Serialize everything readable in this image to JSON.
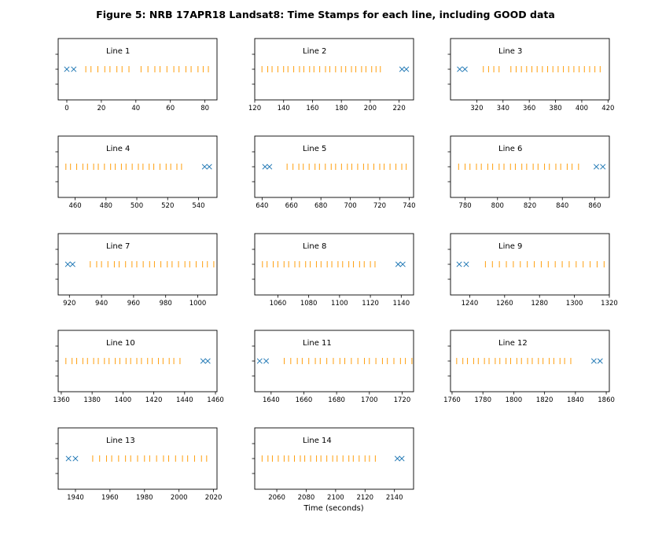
{
  "figure_title": "Figure 5: NRB 17APR18  Landsat8: Time Stamps for each line, including GOOD data",
  "x_axis_label": "Time (seconds)",
  "colors": {
    "all_data": "#1f77b4",
    "good_data": "#ff9f0e"
  },
  "chart_data": [
    {
      "type": "scatter",
      "title": "Line 1",
      "xlim": [
        -5,
        87
      ],
      "xticks": [
        0,
        20,
        40,
        60,
        80
      ],
      "markers_x": [
        0,
        4
      ],
      "good_ticks": [
        11,
        14,
        18,
        22,
        25,
        29,
        32,
        36,
        43,
        47,
        51,
        54,
        58,
        62,
        65,
        69,
        72,
        76,
        79,
        82
      ]
    },
    {
      "type": "scatter",
      "title": "Line 2",
      "xlim": [
        120,
        230
      ],
      "xticks": [
        120,
        140,
        160,
        180,
        200,
        220
      ],
      "markers_x": [
        222,
        225
      ],
      "good_ticks": [
        125,
        129,
        132,
        136,
        140,
        143,
        147,
        151,
        154,
        158,
        161,
        165,
        169,
        172,
        176,
        180,
        183,
        187,
        190,
        194,
        197,
        201,
        204,
        207
      ]
    },
    {
      "type": "scatter",
      "title": "Line 3",
      "xlim": [
        300,
        421
      ],
      "xticks": [
        320,
        340,
        360,
        380,
        400,
        420
      ],
      "markers_x": [
        307,
        311
      ],
      "good_ticks": [
        325,
        329,
        333,
        337,
        346,
        350,
        354,
        358,
        362,
        366,
        370,
        374,
        378,
        382,
        386,
        390,
        394,
        398,
        402,
        406,
        410,
        414
      ]
    },
    {
      "type": "scatter",
      "title": "Line 4",
      "xlim": [
        449,
        552
      ],
      "xticks": [
        460,
        480,
        500,
        520,
        540
      ],
      "markers_x": [
        544,
        547
      ],
      "good_ticks": [
        454,
        457,
        461,
        465,
        468,
        472,
        475,
        479,
        483,
        486,
        490,
        493,
        497,
        501,
        504,
        508,
        511,
        515,
        519,
        522,
        526,
        529
      ]
    },
    {
      "type": "scatter",
      "title": "Line 5",
      "xlim": [
        635,
        743
      ],
      "xticks": [
        640,
        660,
        680,
        700,
        720,
        740
      ],
      "markers_x": [
        642,
        645
      ],
      "good_ticks": [
        657,
        661,
        665,
        668,
        672,
        676,
        679,
        683,
        687,
        690,
        694,
        698,
        701,
        705,
        709,
        712,
        716,
        720,
        723,
        727,
        731,
        735,
        738
      ]
    },
    {
      "type": "scatter",
      "title": "Line 6",
      "xlim": [
        771,
        869
      ],
      "xticks": [
        780,
        800,
        820,
        840,
        860
      ],
      "markers_x": [
        861,
        865
      ],
      "good_ticks": [
        776,
        780,
        783,
        787,
        790,
        794,
        797,
        801,
        804,
        808,
        811,
        815,
        818,
        822,
        825,
        829,
        832,
        836,
        839,
        843,
        846,
        850
      ]
    },
    {
      "type": "scatter",
      "title": "Line 7",
      "xlim": [
        913,
        1012
      ],
      "xticks": [
        920,
        940,
        960,
        980,
        1000
      ],
      "markers_x": [
        919,
        922
      ],
      "good_ticks": [
        933,
        937,
        940,
        944,
        948,
        951,
        955,
        959,
        962,
        966,
        970,
        973,
        977,
        981,
        984,
        988,
        992,
        995,
        999,
        1003,
        1006,
        1010
      ]
    },
    {
      "type": "scatter",
      "title": "Line 8",
      "xlim": [
        1045,
        1148
      ],
      "xticks": [
        1060,
        1080,
        1100,
        1120,
        1140
      ],
      "markers_x": [
        1138,
        1141
      ],
      "good_ticks": [
        1050,
        1053,
        1057,
        1060,
        1064,
        1067,
        1071,
        1074,
        1078,
        1081,
        1085,
        1088,
        1092,
        1095,
        1099,
        1102,
        1106,
        1109,
        1113,
        1116,
        1120,
        1123
      ]
    },
    {
      "type": "scatter",
      "title": "Line 9",
      "xlim": [
        1229,
        1320
      ],
      "xticks": [
        1240,
        1260,
        1280,
        1300,
        1320
      ],
      "markers_x": [
        1234,
        1238
      ],
      "good_ticks": [
        1249,
        1253,
        1257,
        1261,
        1265,
        1269,
        1273,
        1277,
        1281,
        1285,
        1289,
        1293,
        1297,
        1301,
        1305,
        1309,
        1313,
        1317
      ]
    },
    {
      "type": "scatter",
      "title": "Line 10",
      "xlim": [
        1358,
        1461
      ],
      "xticks": [
        1360,
        1380,
        1400,
        1420,
        1440,
        1460
      ],
      "markers_x": [
        1452,
        1455
      ],
      "good_ticks": [
        1363,
        1367,
        1370,
        1374,
        1377,
        1381,
        1384,
        1388,
        1391,
        1395,
        1398,
        1402,
        1405,
        1409,
        1412,
        1416,
        1419,
        1423,
        1426,
        1430,
        1433,
        1437
      ]
    },
    {
      "type": "scatter",
      "title": "Line 11",
      "xlim": [
        1630,
        1727
      ],
      "xticks": [
        1640,
        1660,
        1680,
        1700,
        1720
      ],
      "markers_x": [
        1633,
        1637
      ],
      "good_ticks": [
        1648,
        1652,
        1656,
        1659,
        1663,
        1667,
        1670,
        1674,
        1678,
        1682,
        1685,
        1689,
        1693,
        1697,
        1700,
        1704,
        1708,
        1711,
        1715,
        1719,
        1722,
        1726
      ]
    },
    {
      "type": "scatter",
      "title": "Line 12",
      "xlim": [
        1759,
        1862
      ],
      "xticks": [
        1760,
        1780,
        1800,
        1820,
        1840,
        1860
      ],
      "markers_x": [
        1852,
        1856
      ],
      "good_ticks": [
        1763,
        1767,
        1770,
        1774,
        1777,
        1781,
        1784,
        1788,
        1791,
        1795,
        1798,
        1802,
        1805,
        1809,
        1812,
        1816,
        1819,
        1823,
        1826,
        1830,
        1833,
        1837
      ]
    },
    {
      "type": "scatter",
      "title": "Line 13",
      "xlim": [
        1930,
        2022
      ],
      "xticks": [
        1940,
        1960,
        1980,
        2000,
        2020
      ],
      "markers_x": [
        1936,
        1940
      ],
      "good_ticks": [
        1950,
        1954,
        1958,
        1961,
        1965,
        1969,
        1972,
        1976,
        1980,
        1983,
        1987,
        1991,
        1994,
        1998,
        2002,
        2005,
        2009,
        2013,
        2016
      ]
    },
    {
      "type": "scatter",
      "title": "Line 14",
      "xlim": [
        2045,
        2153
      ],
      "xticks": [
        2060,
        2080,
        2100,
        2120,
        2140
      ],
      "markers_x": [
        2142,
        2145
      ],
      "good_ticks": [
        2050,
        2054,
        2057,
        2061,
        2065,
        2068,
        2072,
        2076,
        2079,
        2083,
        2087,
        2090,
        2094,
        2098,
        2101,
        2105,
        2109,
        2112,
        2116,
        2120,
        2123,
        2127
      ]
    }
  ]
}
